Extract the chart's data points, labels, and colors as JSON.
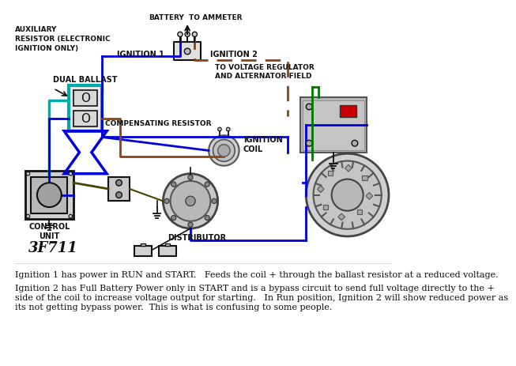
{
  "background_color": "#ffffff",
  "diagram_bg": "#f0ebe0",
  "text_line1": "Ignition 1 has power in RUN and START.   Feeds the coil + through the ballast resistor at a reduced voltage.",
  "text_line2": "Ignition 2 has Full Battery Power only in START and is a bypass circuit to send full voltage directly to the +",
  "text_line3": "side of the coil to increase voltage output for starting.   In Run position, Ignition 2 will show reduced power as",
  "text_line4": "its not getting bypass power.  This is what is confusing to some people.",
  "label_auxiliary": "AUXILIARY\nRESISTOR (ELECTRONIC\nIGNITION ONLY)",
  "label_dual_ballast": "DUAL BALLAST",
  "label_battery": "BATTERY",
  "label_to_ammeter": "TO AMMETER",
  "label_ignition1": "IGNITION 1",
  "label_ignition2": "IGNITION 2",
  "label_voltage_reg": "TO VOLTAGE REGULATOR\nAND ALTERNATOR FIELD",
  "label_comp_resistor": "COMPENSATING RESISTOR",
  "label_ignition_coil": "IGNITION\nCOIL",
  "label_distributor": "DISTRIBUTOR",
  "label_control_unit": "CONTROL\nUNIT",
  "label_part_number": "3F711",
  "color_blue": "#0000dd",
  "color_brown": "#8B4513",
  "color_green": "#007700",
  "color_teal": "#00aaaa",
  "color_red": "#cc0000",
  "color_black": "#111111",
  "color_gray_bg": "#c8c8c8",
  "color_gray_dark": "#888888"
}
